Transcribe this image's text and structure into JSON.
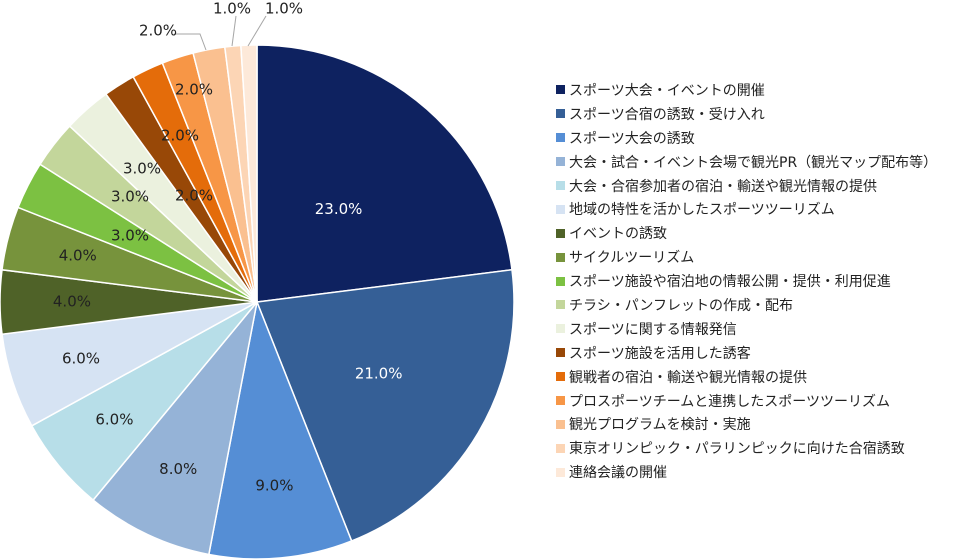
{
  "chart_data": {
    "type": "pie",
    "title": "",
    "slices": [
      {
        "label": "スポーツ大会・イベントの開催",
        "value": 23.0,
        "display": "23.0%",
        "color": "#0e2260"
      },
      {
        "label": "スポーツ合宿の誘致・受け入れ",
        "value": 21.0,
        "display": "21.0%",
        "color": "#355f96"
      },
      {
        "label": "スポーツ大会の誘致",
        "value": 9.0,
        "display": "9.0%",
        "color": "#558ed5"
      },
      {
        "label": "大会・試合・イベント会場で観光PR（観光マップ配布等）",
        "value": 8.0,
        "display": "8.0%",
        "color": "#95b3d7"
      },
      {
        "label": "大会・合宿参加者の宿泊・輸送や観光情報の提供",
        "value": 6.0,
        "display": "6.0%",
        "color": "#b7dee8"
      },
      {
        "label": "地域の特性を活かしたスポーツツーリズム",
        "value": 6.0,
        "display": "6.0%",
        "color": "#d6e3f3"
      },
      {
        "label": "イベントの誘致",
        "value": 4.0,
        "display": "4.0%",
        "color": "#4f6228"
      },
      {
        "label": "サイクルツーリズム",
        "value": 4.0,
        "display": "4.0%",
        "color": "#77933c"
      },
      {
        "label": "スポーツ施設や宿泊地の情報公開・提供・利用促進",
        "value": 3.0,
        "display": "3.0%",
        "color": "#7cc142"
      },
      {
        "label": "チラシ・パンフレットの作成・配布",
        "value": 3.0,
        "display": "3.0%",
        "color": "#c3d69b"
      },
      {
        "label": "スポーツに関する情報発信",
        "value": 3.0,
        "display": "3.0%",
        "color": "#ebf1de"
      },
      {
        "label": "スポーツ施設を活用した誘客",
        "value": 2.0,
        "display": "2.0%",
        "color": "#984807"
      },
      {
        "label": "観戦者の宿泊・輸送や観光情報の提供",
        "value": 2.0,
        "display": "2.0%",
        "color": "#e46c0a"
      },
      {
        "label": "プロスポーツチームと連携したスポーツツーリズム",
        "value": 2.0,
        "display": "2.0%",
        "color": "#f79646"
      },
      {
        "label": "観光プログラムを検討・実施",
        "value": 2.0,
        "display": "2.0%",
        "color": "#fac090"
      },
      {
        "label": "東京オリンピック・パラリンピックに向けた合宿誘致",
        "value": 1.0,
        "display": "1.0%",
        "color": "#fcd5b5"
      },
      {
        "label": "連絡会議の開催",
        "value": 1.0,
        "display": "1.0%",
        "color": "#fde9d9"
      }
    ],
    "legend_position": "right"
  }
}
